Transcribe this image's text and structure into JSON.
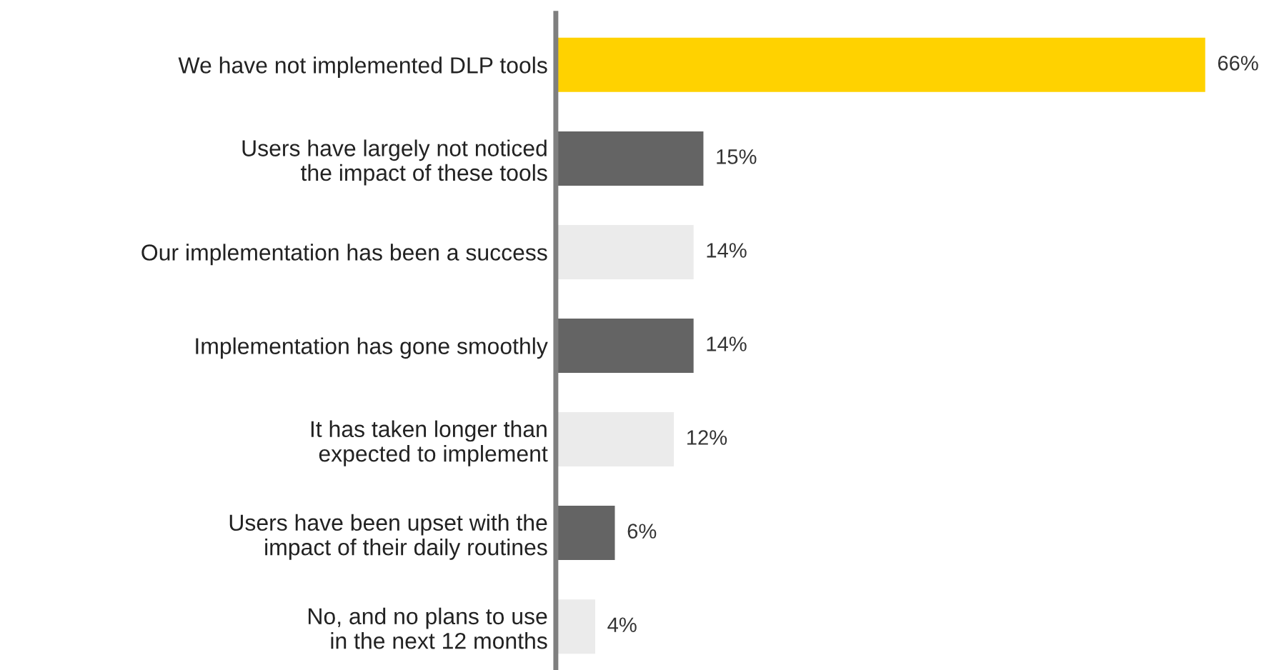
{
  "chart_data": {
    "type": "bar",
    "orientation": "horizontal",
    "categories": [
      "We have not implemented DLP tools",
      "Users have largely not noticed\nthe impact of these tools",
      "Our implementation has been a success",
      "Implementation has gone smoothly",
      "It has taken longer than\nexpected to implement",
      "Users have been upset with the\nimpact of their daily routines",
      "No, and no plans to use\nin the next 12 months"
    ],
    "values": [
      66,
      15,
      14,
      14,
      12,
      6,
      4
    ],
    "colors": [
      "#ffd200",
      "#646464",
      "#ebebeb",
      "#646464",
      "#ebebeb",
      "#646464",
      "#ebebeb"
    ],
    "value_labels": [
      "66%",
      "15%",
      "14%",
      "14%",
      "12%",
      "6%",
      "4%"
    ],
    "grid": false,
    "legend": false,
    "tick_labels": "y"
  }
}
